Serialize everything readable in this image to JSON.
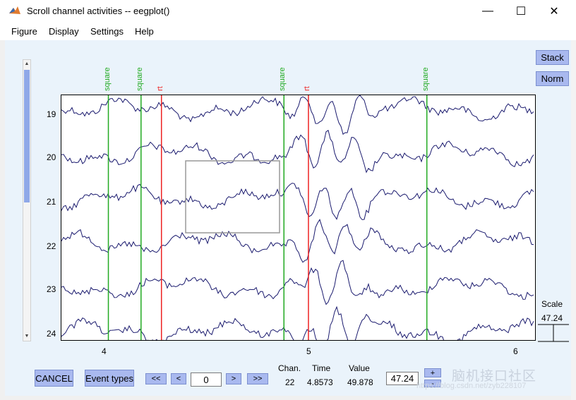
{
  "window": {
    "title": "Scroll channel activities -- eegplot()",
    "minimize_glyph": "—",
    "maximize_glyph": "☐",
    "close_glyph": "✕"
  },
  "menu": {
    "items": [
      "Figure",
      "Display",
      "Settings",
      "Help"
    ],
    "undock_glyph": "↘"
  },
  "buttons": {
    "stack": "Stack",
    "norm": "Norm",
    "cancel": "CANCEL",
    "event_types": "Event types",
    "page_back": "<<",
    "step_back": "<",
    "step_fwd": ">",
    "page_fwd": ">>",
    "scale_plus": "+",
    "scale_minus": "-"
  },
  "fields": {
    "window_start": "0",
    "scale_edit": "47.24"
  },
  "plot": {
    "channel_labels": [
      "19",
      "20",
      "21",
      "22",
      "23",
      "24"
    ],
    "time_labels": [
      "4",
      "5",
      "6"
    ],
    "time_range_s": [
      3.78,
      6.1
    ],
    "trace_color": "#1a1a6e",
    "events": [
      {
        "label": "square",
        "time": 4.01,
        "color": "#22aa22"
      },
      {
        "label": "square",
        "time": 4.17,
        "color": "#22aa22"
      },
      {
        "label": "rt",
        "time": 4.27,
        "color": "#ee2222"
      },
      {
        "label": "square",
        "time": 4.87,
        "color": "#22aa22"
      },
      {
        "label": "rt",
        "time": 4.99,
        "color": "#ee2222"
      },
      {
        "label": "square",
        "time": 5.57,
        "color": "#22aa22"
      }
    ]
  },
  "readout": {
    "chan_label": "Chan.",
    "time_label": "Time",
    "value_label": "Value",
    "chan_value": "22",
    "time_value": "4.8573",
    "value_value": "49.878"
  },
  "scale": {
    "label": "Scale",
    "value": "47.24"
  },
  "watermark": {
    "text": "脑机接口社区",
    "url": "https://blog.csdn.net/zyb228107"
  }
}
